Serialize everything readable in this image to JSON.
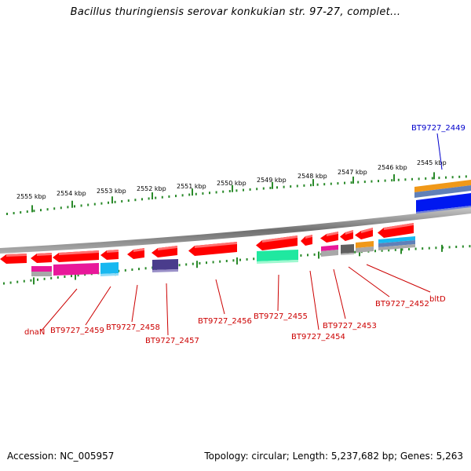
{
  "title": "Bacillus thuringiensis serovar konkukian str. 97-27, complet...",
  "footer": {
    "accession": "Accession: NC_005957",
    "topology": "Topology: circular; Length: 5,237,682 bp; Genes: 5,263"
  },
  "kbp_labels": [
    "2555 kbp",
    "2554 kbp",
    "2553 kbp",
    "2552 kbp",
    "2551 kbp",
    "2550 kbp",
    "2549 kbp",
    "2548 kbp",
    "2547 kbp",
    "2546 kbp",
    "2545 kbp"
  ],
  "gene_labels": [
    "dnaN",
    "BT9727_2459",
    "BT9727_2458",
    "BT9727_2457",
    "BT9727_2456",
    "BT9727_2455",
    "BT9727_2454",
    "BT9727_2453",
    "BT9727_2452",
    "bltD"
  ],
  "highlight_label": "BT9727_2449",
  "colors": {
    "gene_red": "#ff0000",
    "gene_magenta": "#e8189a",
    "gene_cyan": "#18b8f0",
    "gene_purple": "#4a3c8c",
    "gene_green": "#20e8a0",
    "gene_gray": "#606060",
    "gene_orange": "#f09818",
    "gene_blue": "#0018f0",
    "tick_green": "#2a8a2a",
    "backbone_gray": "#8c8c8c",
    "label_red": "#cc0000",
    "label_blue": "#0000cc"
  }
}
